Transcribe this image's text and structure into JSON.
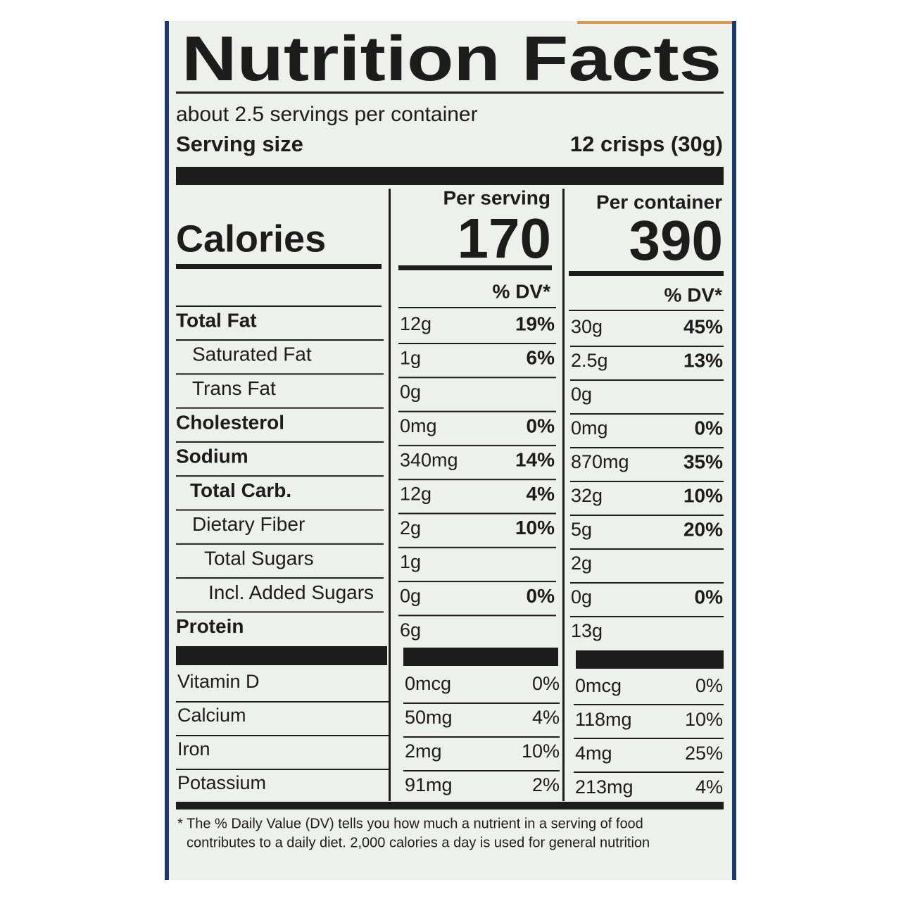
{
  "header": {
    "title": "Nutrition Facts",
    "servings": "about 2.5 servings per container",
    "serving_size_label": "Serving size",
    "serving_size": "12 crisps (30g)"
  },
  "calories": {
    "label": "Calories",
    "per_serving_label": "Per serving",
    "per_container_label": "Per container",
    "per_serving": "170",
    "per_container": "390",
    "dv_label_serving": "% DV*",
    "dv_label_container": "% DV*"
  },
  "table": {
    "rows": [
      [
        "Total Fat",
        "12g",
        "19%",
        "30g",
        "45%"
      ],
      [
        "Saturated Fat",
        "1g",
        "6%",
        "2.5g",
        "13%"
      ],
      [
        "Trans Fat",
        "0g",
        null,
        "0g",
        null
      ],
      [
        "Cholesterol",
        "0mg",
        "0%",
        "0mg",
        "0%"
      ],
      [
        "Sodium",
        "340mg",
        "14%",
        "870mg",
        "35%"
      ],
      [
        "Total Carb.",
        "12g",
        "4%",
        "32g",
        "10%"
      ],
      [
        "Dietary Fiber",
        "2g",
        "10%",
        "5g",
        "20%"
      ],
      [
        "Total Sugars",
        "1g",
        null,
        "2g",
        null
      ],
      [
        "Incl. Added Sugars",
        "0g",
        "0%",
        "0g",
        "0%"
      ],
      [
        "Protein",
        "6g",
        null,
        "13g",
        null
      ]
    ],
    "vitamins": [
      [
        "Vitamin D",
        "0mcg",
        "0%",
        "0mcg",
        "0%"
      ],
      [
        "Calcium",
        "50mg",
        "4%",
        "118mg",
        "10%"
      ],
      [
        "Iron",
        "2mg",
        "10%",
        "4mg",
        "25%"
      ],
      [
        "Potassium",
        "91mg",
        "2%",
        "213mg",
        "4%"
      ]
    ]
  },
  "footnote": {
    "lines": [
      "* The % Daily Value (DV) tells you how much a nutrient in a serving of food",
      "contributes to a daily diet. 2,000 calories a day is used for general nutrition"
    ]
  }
}
